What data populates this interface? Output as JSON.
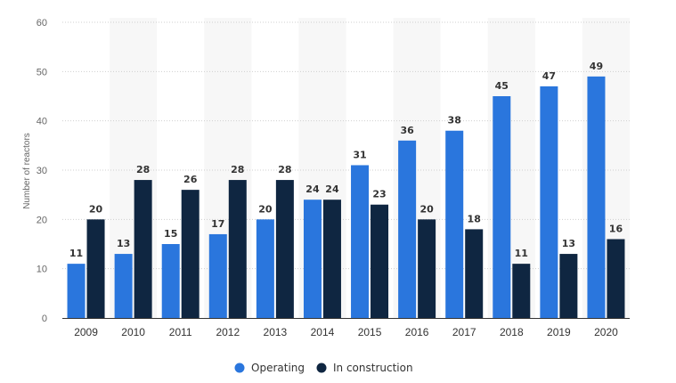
{
  "chart_data": {
    "type": "bar",
    "categories": [
      "2009",
      "2010",
      "2011",
      "2012",
      "2013",
      "2014",
      "2015",
      "2016",
      "2017",
      "2018",
      "2019",
      "2020"
    ],
    "series": [
      {
        "name": "Operating",
        "color": "#2a76dd",
        "values": [
          11,
          13,
          15,
          17,
          20,
          24,
          31,
          36,
          38,
          45,
          47,
          49
        ]
      },
      {
        "name": "In construction",
        "color": "#0f2641",
        "values": [
          20,
          28,
          26,
          28,
          28,
          24,
          23,
          20,
          18,
          11,
          13,
          16
        ]
      }
    ],
    "title": "",
    "xlabel": "",
    "ylabel": "Number of reactors",
    "ylim": [
      0,
      60
    ],
    "yticks": [
      0,
      10,
      20,
      30,
      40,
      50,
      60
    ],
    "grid": true,
    "legend": "bottom-center",
    "band_color": "#f7f7f7"
  }
}
